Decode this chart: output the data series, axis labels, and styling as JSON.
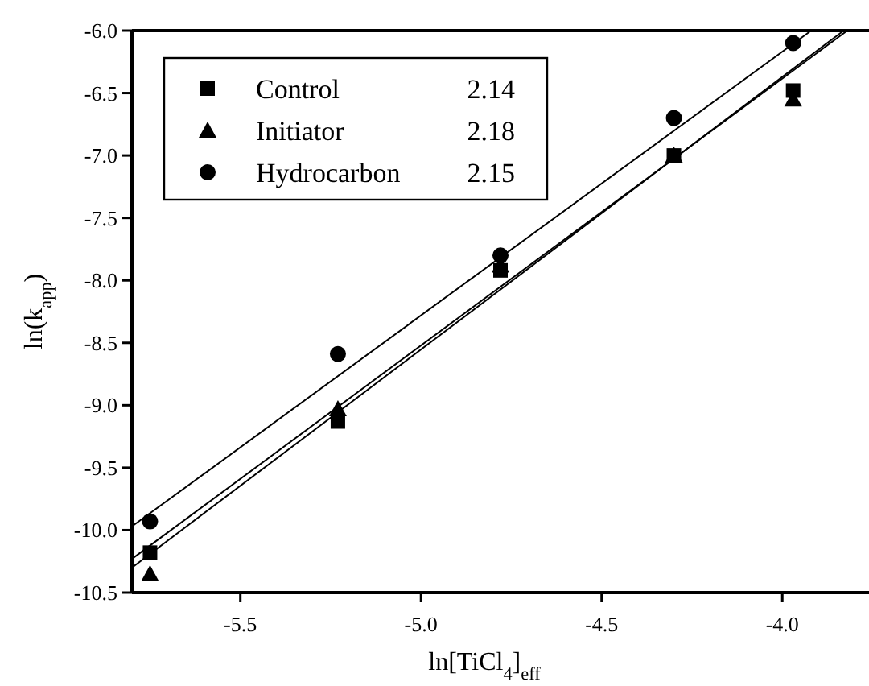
{
  "chart_data": {
    "type": "scatter",
    "xlabel": "ln[TiCl$_{4}$]$_{eff}$",
    "ylabel": "ln(k$_{app}$)",
    "xlim": [
      -5.8,
      -3.76
    ],
    "ylim": [
      -10.5,
      -6.0
    ],
    "xticks": [
      {
        "value": -5.5,
        "label": "-5.5"
      },
      {
        "value": -5.0,
        "label": "-5.0"
      },
      {
        "value": -4.5,
        "label": "-4.5"
      },
      {
        "value": -4.0,
        "label": "-4.0"
      }
    ],
    "yticks": [
      {
        "value": -10.5,
        "label": "-10.5"
      },
      {
        "value": -10.0,
        "label": "-10.0"
      },
      {
        "value": -9.5,
        "label": "-9.5"
      },
      {
        "value": -9.0,
        "label": "-9.0"
      },
      {
        "value": -8.5,
        "label": "-8.5"
      },
      {
        "value": -8.0,
        "label": "-8.0"
      },
      {
        "value": -7.5,
        "label": "-7.5"
      },
      {
        "value": -7.0,
        "label": "-7.0"
      },
      {
        "value": -6.5,
        "label": "-6.5"
      },
      {
        "value": -6.0,
        "label": "-6.0"
      }
    ],
    "legend": "top left",
    "annotations": [
      "2.14",
      "2.18",
      "2.15"
    ],
    "series": [
      {
        "name": "Control",
        "color": "#000000",
        "marker": "square",
        "x": [
          -5.75,
          -5.23,
          -4.78,
          -4.3,
          -3.97
        ],
        "values": [
          -10.18,
          -9.13,
          -7.92,
          -7.0,
          -6.48
        ]
      },
      {
        "name": "Initiator",
        "color": "#000000",
        "marker": "triangle",
        "x": [
          -5.75,
          -5.23,
          -4.78,
          -4.3,
          -3.97
        ],
        "values": [
          -10.35,
          -9.03,
          -7.88,
          -7.0,
          -6.55
        ]
      },
      {
        "name": "Hydrocarbon",
        "color": "#000000",
        "marker": "circle",
        "x": [
          -5.75,
          -5.23,
          -4.78,
          -4.3,
          -3.97
        ],
        "values": [
          -9.93,
          -8.59,
          -7.8,
          -6.7,
          -6.1
        ]
      },
      {
        "type": "line",
        "color": "#000000",
        "x": [
          -5.8,
          -3.82
        ],
        "values": [
          -10.23,
          -6.0
        ]
      },
      {
        "type": "line",
        "color": "#000000",
        "x": [
          -5.8,
          -3.83
        ],
        "values": [
          -10.3,
          -6.0
        ]
      },
      {
        "type": "line",
        "color": "#000000",
        "x": [
          -5.8,
          -3.92
        ],
        "values": [
          -9.97,
          -6.0
        ]
      }
    ]
  }
}
